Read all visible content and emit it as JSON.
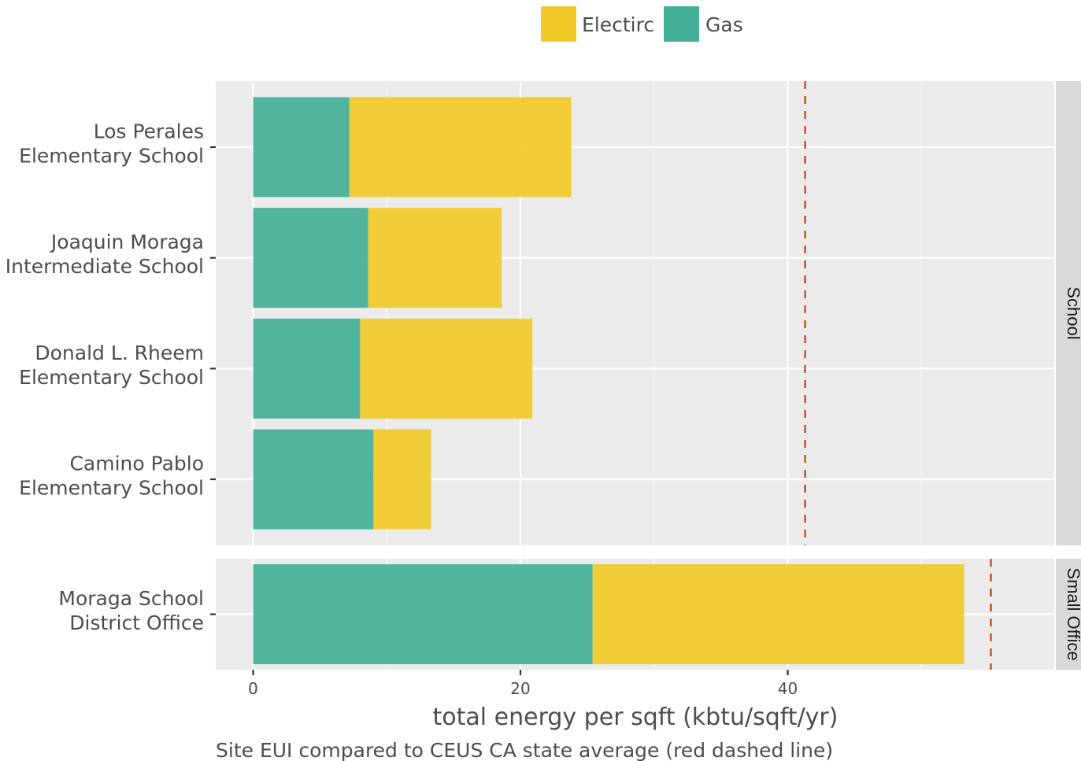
{
  "chart_data": {
    "type": "bar",
    "orientation": "horizontal",
    "stacked": true,
    "xlabel": "total energy per sqft (kbtu/sqft/yr)",
    "caption": "Site EUI compared to CEUS CA state average (red dashed line)",
    "xlim": [
      -2.8,
      60
    ],
    "xticks": [
      0,
      20,
      40
    ],
    "legend": {
      "position": "top",
      "entries": [
        {
          "label": "Electirc",
          "color": "#f0c929"
        },
        {
          "label": "Gas",
          "color": "#43af96"
        }
      ]
    },
    "series": [
      {
        "name": "Gas",
        "color": "#43af96"
      },
      {
        "name": "Electirc",
        "color": "#f0c929"
      }
    ],
    "panels": [
      {
        "strip_label": "School",
        "reference_line": 41.3,
        "reference_color": "#c0501a",
        "categories": [
          {
            "lines": [
              "Los Perales",
              "Elementary School"
            ],
            "gas": 7.2,
            "electric": 16.6
          },
          {
            "lines": [
              "Joaquin Moraga",
              "Intermediate School"
            ],
            "gas": 8.6,
            "electric": 10.0
          },
          {
            "lines": [
              "Donald L. Rheem",
              "Elementary School"
            ],
            "gas": 8.0,
            "electric": 12.9
          },
          {
            "lines": [
              "Camino Pablo",
              "Elementary School"
            ],
            "gas": 9.0,
            "electric": 4.3
          }
        ]
      },
      {
        "strip_label": "Small Office",
        "reference_line": 55.2,
        "reference_color": "#c0501a",
        "categories": [
          {
            "lines": [
              "Moraga School",
              "District Office"
            ],
            "gas": 25.4,
            "electric": 27.8
          }
        ]
      }
    ]
  }
}
